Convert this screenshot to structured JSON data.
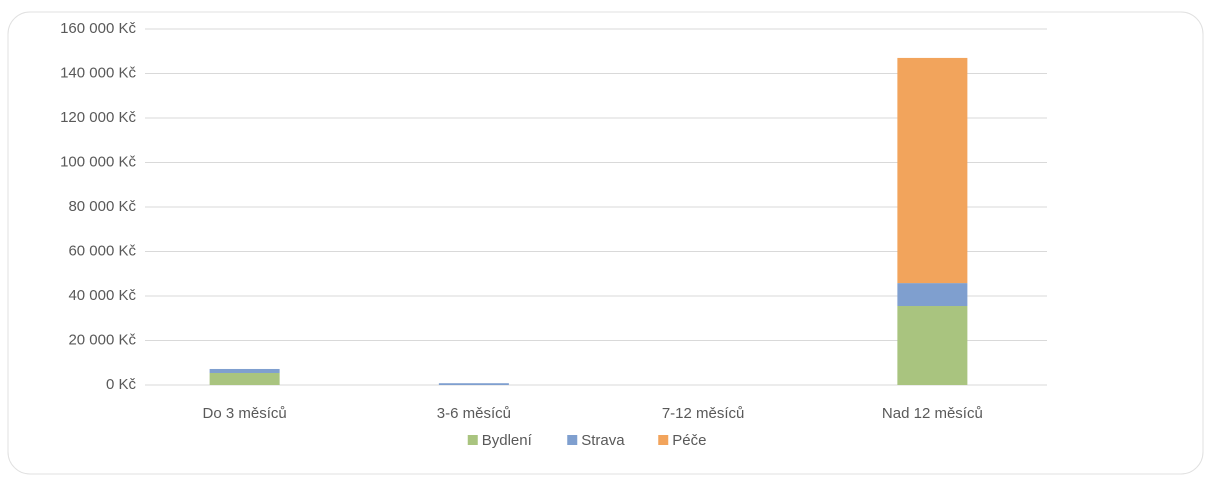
{
  "chart_data": {
    "type": "stacked_bar",
    "categories": [
      "Do 3 měsíců",
      "3-6 měsíců",
      "7-12 měsíců",
      "Nad 12 měsíců"
    ],
    "series": [
      {
        "name": "Bydlení",
        "color": "#a9c47f",
        "values": [
          5400,
          0,
          0,
          35500
        ]
      },
      {
        "name": "Strava",
        "color": "#7f9fcf",
        "values": [
          1800,
          800,
          0,
          10300
        ]
      },
      {
        "name": "Péče",
        "color": "#f2a45c",
        "values": [
          0,
          0,
          0,
          101200
        ]
      }
    ],
    "ylim": [
      0,
      160000
    ],
    "yticks": [
      {
        "value": 0,
        "label": "0 Kč"
      },
      {
        "value": 20000,
        "label": "20 000 Kč"
      },
      {
        "value": 40000,
        "label": "40 000 Kč"
      },
      {
        "value": 60000,
        "label": "60 000 Kč"
      },
      {
        "value": 80000,
        "label": "80 000 Kč"
      },
      {
        "value": 100000,
        "label": "100 000 Kč"
      },
      {
        "value": 120000,
        "label": "120 000 Kč"
      },
      {
        "value": 140000,
        "label": "140 000 Kč"
      },
      {
        "value": 160000,
        "label": "160 000 Kč"
      }
    ],
    "grid": true,
    "legend": "bottom"
  }
}
